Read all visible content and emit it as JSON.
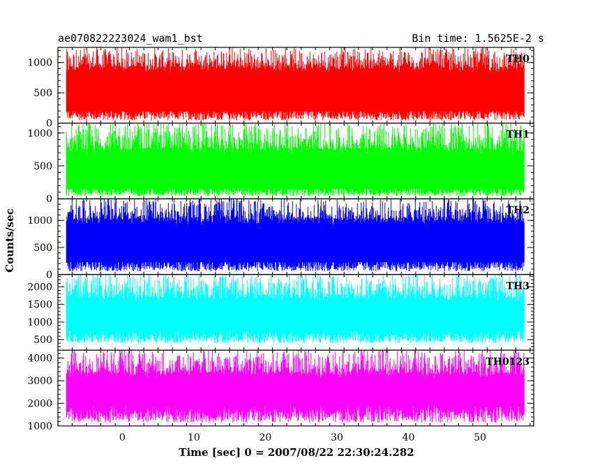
{
  "chart_data": {
    "type": "line",
    "title": "ae070822223024_wam1_bst",
    "subtitle": "Bin time: 1.5625E-2 s",
    "xlabel": "Time [sec] 0 = 2007/08/22 22:30:24.282",
    "ylabel": "Counts/sec",
    "xlim": [
      -9,
      57.5
    ],
    "x_range": [
      -7.8,
      56.2
    ],
    "x_ticks": [
      0,
      10,
      20,
      30,
      40,
      50
    ],
    "x_tick_labels": [
      "0",
      "10",
      "20",
      "30",
      "40",
      "50"
    ],
    "grid": false,
    "panels": [
      {
        "name": "TH0",
        "color": "#ff0000",
        "ylim": [
          0,
          1250
        ],
        "y_ticks": [
          0,
          500,
          1000
        ],
        "y_tick_labels": [
          "0",
          "500",
          "1000"
        ],
        "y_minor_step": 100,
        "typical_low": 150,
        "typical_high": 950,
        "min": 20,
        "max": 1250
      },
      {
        "name": "TH1",
        "color": "#00ff00",
        "ylim": [
          0,
          1150
        ],
        "y_ticks": [
          0,
          500,
          1000
        ],
        "y_tick_labels": [
          "0",
          "500",
          "1000"
        ],
        "y_minor_step": 100,
        "typical_low": 120,
        "typical_high": 780,
        "min": 20,
        "max": 1150
      },
      {
        "name": "TH2",
        "color": "#0000ff",
        "ylim": [
          0,
          1400
        ],
        "y_ticks": [
          0,
          500,
          1000
        ],
        "y_tick_labels": [
          "0",
          "500",
          "1000"
        ],
        "y_minor_step": 100,
        "typical_low": 180,
        "typical_high": 1050,
        "min": 30,
        "max": 1400
      },
      {
        "name": "TH3",
        "color": "#00ffff",
        "ylim": [
          200,
          2350
        ],
        "y_ticks": [
          500,
          1000,
          1500,
          2000
        ],
        "y_tick_labels": [
          "500",
          "1000",
          "1500",
          "2000"
        ],
        "y_minor_step": 100,
        "typical_low": 600,
        "typical_high": 1750,
        "min": 350,
        "max": 2350
      },
      {
        "name": "TH0123",
        "color": "#ff00ff",
        "ylim": [
          1000,
          4350
        ],
        "y_ticks": [
          1000,
          2000,
          3000,
          4000
        ],
        "y_tick_labels": [
          "1000",
          "2000",
          "3000",
          "4000"
        ],
        "y_minor_step": 200,
        "typical_low": 1550,
        "typical_high": 3400,
        "min": 1050,
        "max": 4350
      }
    ]
  }
}
